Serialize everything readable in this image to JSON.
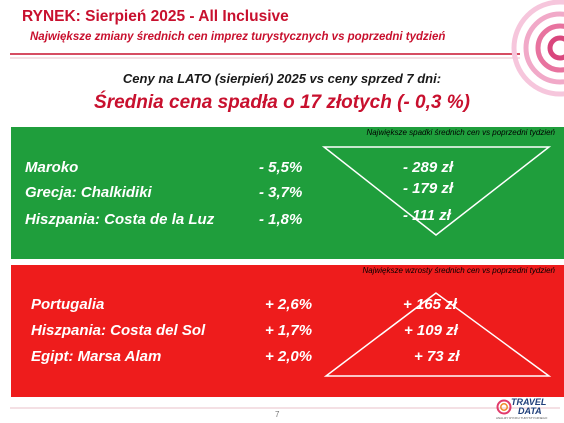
{
  "header": {
    "title": "RYNEK: Sierpień 2025 - All Inclusive",
    "subtitle": "Największe zmiany średnich cen imprez turystycznych vs poprzedni tydzień"
  },
  "summary": {
    "question": "Ceny na LATO (sierpień) 2025 vs ceny sprzed 7 dni:",
    "headline": "Średnia cena spadła o 17 złotych (- 0,3 %)"
  },
  "decreases": {
    "note": "Największe spadki średnich cen vs poprzedni tydzień",
    "rows": [
      {
        "destination": "Maroko",
        "percent": "- 5,5%",
        "amount": "- 289 zł"
      },
      {
        "destination": "Grecja: Chalkidiki",
        "percent": "- 3,7%",
        "amount": "- 179 zł"
      },
      {
        "destination": "Hiszpania: Costa de la Luz",
        "percent": "- 1,8%",
        "amount": "- 111 zł"
      }
    ]
  },
  "increases": {
    "note": "Największe wzrosty średnich cen vs poprzedni tydzień",
    "rows": [
      {
        "destination": "Portugalia",
        "percent": "+ 2,6%",
        "amount": "+ 165 zł"
      },
      {
        "destination": "Hiszpania: Costa del Sol",
        "percent": "+ 1,7%",
        "amount": "+ 109 zł"
      },
      {
        "destination": "Egipt: Marsa Alam",
        "percent": "+ 2,0%",
        "amount": "+ 73 zł"
      }
    ]
  },
  "footer": {
    "page_number": "7",
    "logo_line1": "TRAVEL",
    "logo_line2": "DATA",
    "logo_tagline": "ANALIZY RYNKU TURYSTYCZNEGO"
  },
  "colors": {
    "accent_red": "#c8102e",
    "panel_green": "#1f9e3c",
    "panel_red": "#ee1c1c",
    "logo_blue": "#1f3f7a"
  }
}
